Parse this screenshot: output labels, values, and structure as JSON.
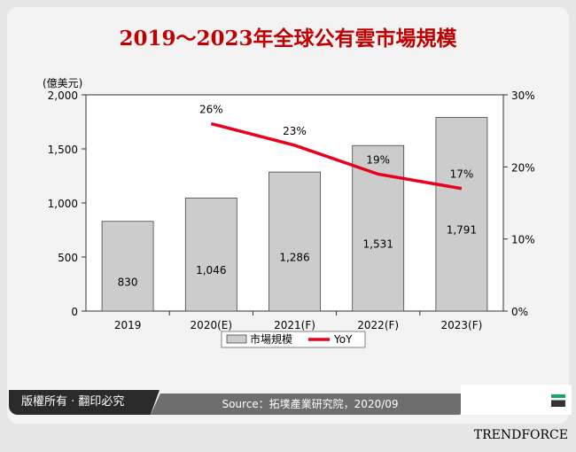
{
  "chart_data": {
    "type": "bar+line",
    "title": "2019～2023年全球公有雲市場規模",
    "unit_label": "(億美元)",
    "categories": [
      "2019",
      "2020(E)",
      "2021(F)",
      "2022(F)",
      "2023(F)"
    ],
    "series": [
      {
        "name": "市場規模",
        "type": "bar",
        "axis": "left",
        "values": [
          830,
          1046,
          1286,
          1531,
          1791
        ],
        "labels": [
          "830",
          "1,046",
          "1,286",
          "1,531",
          "1,791"
        ],
        "color": "#cccccc"
      },
      {
        "name": "YoY",
        "type": "line",
        "axis": "right",
        "values": [
          null,
          26,
          23,
          19,
          17
        ],
        "labels": [
          "",
          "26%",
          "23%",
          "19%",
          "17%"
        ],
        "color": "#e8001c"
      }
    ],
    "ylim": [
      0,
      2000
    ],
    "yticks": [
      "0",
      "500",
      "1,000",
      "1,500",
      "2,000"
    ],
    "y2lim": [
      0,
      30
    ],
    "y2ticks": [
      "0%",
      "10%",
      "20%",
      "30%"
    ],
    "legend": "bottom",
    "grid": false
  },
  "footer": {
    "copyright": "版權所有 · 翻印必究",
    "source": "Source：拓墣產業研究院，2020/09",
    "brand": "TRENDFORCE"
  }
}
